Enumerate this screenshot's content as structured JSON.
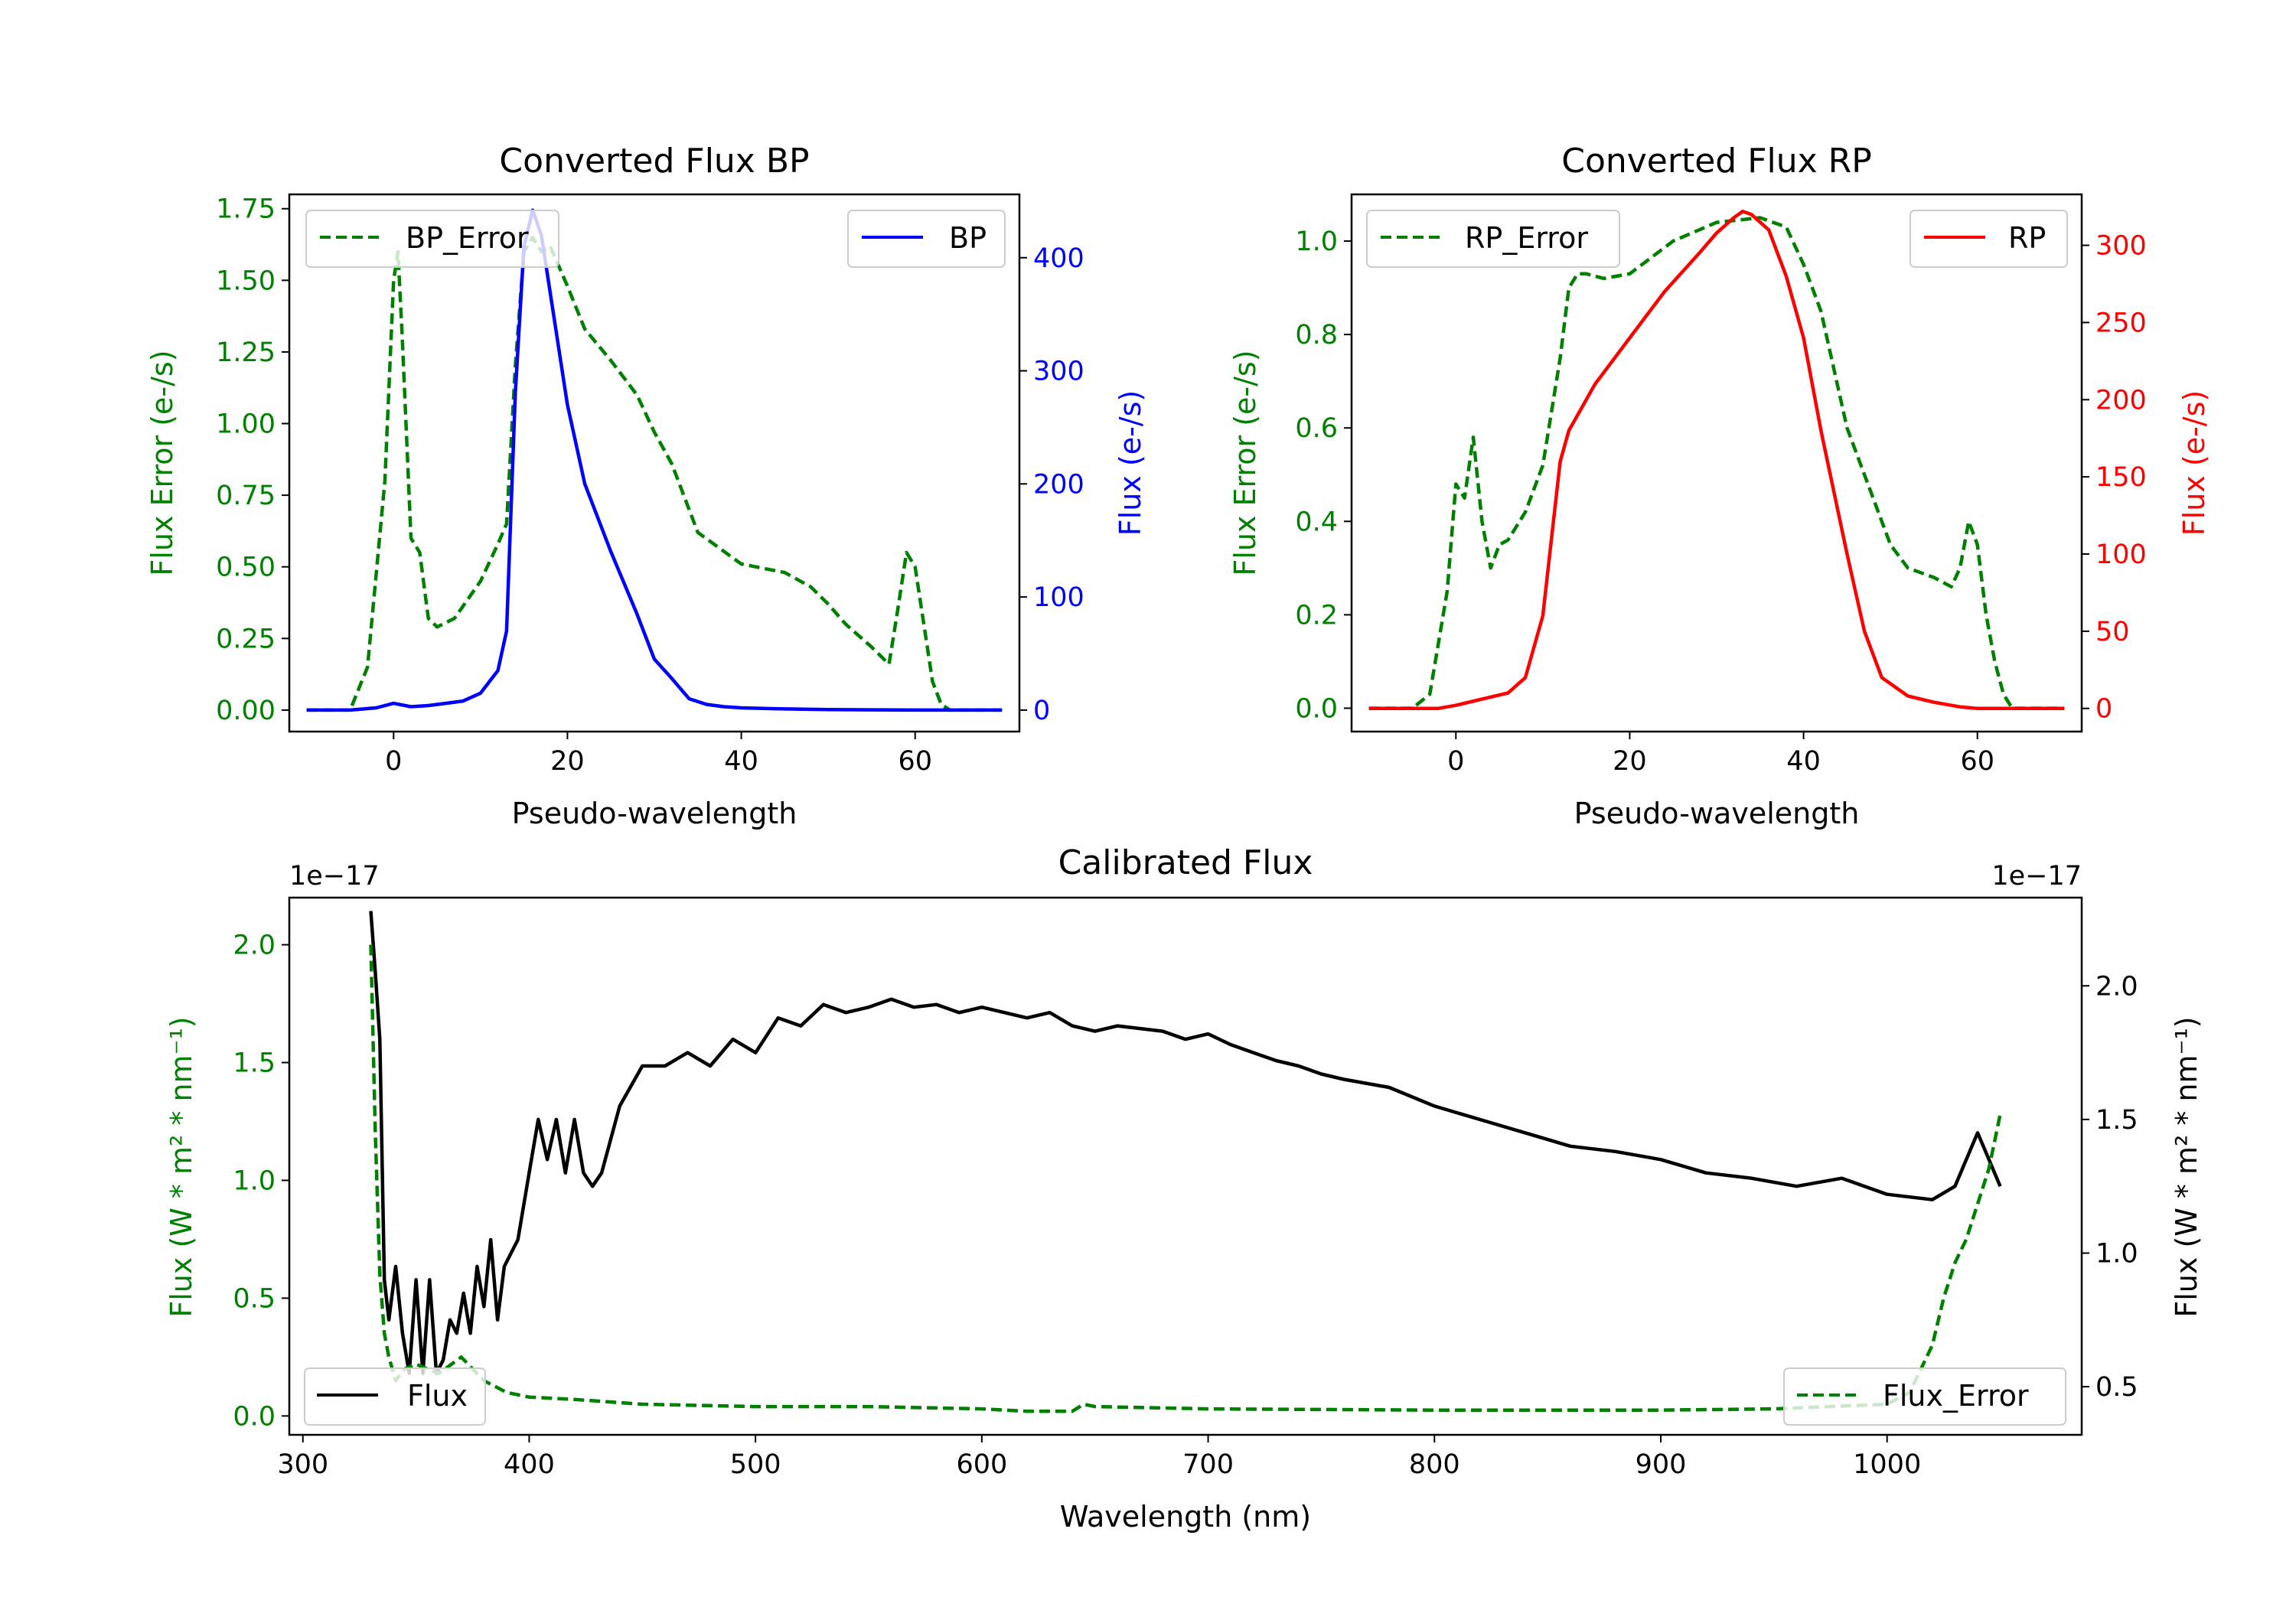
{
  "colors": {
    "green": "#008000",
    "blue": "#0000ff",
    "red": "#ff0000",
    "black": "#000000"
  },
  "chart_data": [
    {
      "type": "line",
      "title": "Converted Flux BP",
      "xlabel": "Pseudo-wavelength",
      "ylabel_left": "Flux Error (e-/s)",
      "ylabel_right": "Flux (e-/s)",
      "xlim": [
        -12,
        72
      ],
      "ylim_left": [
        -0.075,
        1.8
      ],
      "ylim_right": [
        -19,
        456
      ],
      "xticks": [
        0,
        20,
        40,
        60
      ],
      "yticks_left": [
        "0.00",
        "0.25",
        "0.50",
        "0.75",
        "1.00",
        "1.25",
        "1.50",
        "1.75"
      ],
      "yticks_right": [
        "0",
        "100",
        "200",
        "300",
        "400"
      ],
      "legend_left": "BP_Error",
      "legend_right": "BP",
      "series": [
        {
          "name": "BP_Error",
          "axis": "left",
          "style": "dashed",
          "color": "green",
          "x": [
            -10,
            -5,
            -3,
            -1,
            0,
            0.5,
            1,
            2,
            3,
            4,
            5,
            7,
            10,
            12,
            13,
            14,
            15,
            16,
            17,
            18,
            20,
            22,
            25,
            28,
            30,
            32,
            35,
            40,
            45,
            48,
            50,
            52,
            55,
            57,
            58,
            59,
            60,
            61,
            62,
            63,
            64,
            66,
            70
          ],
          "y": [
            0,
            0,
            0.15,
            0.8,
            1.5,
            1.6,
            1.3,
            0.6,
            0.55,
            0.32,
            0.29,
            0.32,
            0.45,
            0.58,
            0.65,
            1.2,
            1.6,
            1.65,
            1.6,
            1.62,
            1.48,
            1.33,
            1.22,
            1.1,
            0.97,
            0.86,
            0.62,
            0.51,
            0.48,
            0.43,
            0.37,
            0.3,
            0.22,
            0.16,
            0.35,
            0.55,
            0.5,
            0.3,
            0.1,
            0.02,
            0,
            0,
            0
          ]
        },
        {
          "name": "BP",
          "axis": "right",
          "style": "solid",
          "color": "blue",
          "x": [
            -10,
            -5,
            -2,
            0,
            2,
            4,
            6,
            8,
            10,
            12,
            13,
            14,
            15,
            16,
            17,
            18,
            20,
            22,
            25,
            28,
            30,
            32,
            34,
            36,
            38,
            40,
            45,
            50,
            55,
            60,
            65,
            70
          ],
          "y": [
            0,
            0,
            2,
            6,
            3,
            4,
            6,
            8,
            15,
            35,
            70,
            280,
            410,
            442,
            420,
            370,
            270,
            200,
            140,
            85,
            45,
            28,
            10,
            5,
            3,
            2,
            1,
            0.5,
            0.2,
            0,
            0,
            0
          ]
        }
      ]
    },
    {
      "type": "line",
      "title": "Converted Flux RP",
      "xlabel": "Pseudo-wavelength",
      "ylabel_left": "Flux Error (e-/s)",
      "ylabel_right": "Flux (e-/s)",
      "xlim": [
        -12,
        72
      ],
      "ylim_left": [
        -0.05,
        1.1
      ],
      "ylim_right": [
        -15,
        333
      ],
      "xticks": [
        0,
        20,
        40,
        60
      ],
      "yticks_left": [
        "0.0",
        "0.2",
        "0.4",
        "0.6",
        "0.8",
        "1.0"
      ],
      "yticks_right": [
        "0",
        "50",
        "100",
        "150",
        "200",
        "250",
        "300"
      ],
      "legend_left": "RP_Error",
      "legend_right": "RP",
      "series": [
        {
          "name": "RP_Error",
          "axis": "left",
          "style": "dashed",
          "color": "green",
          "x": [
            -10,
            -5,
            -3,
            -1,
            0,
            1,
            2,
            3,
            4,
            5,
            6,
            8,
            10,
            12,
            13,
            14,
            15,
            17,
            20,
            25,
            30,
            35,
            38,
            40,
            42,
            45,
            50,
            52,
            55,
            57,
            58,
            59,
            60,
            61,
            62,
            63,
            64,
            66,
            70
          ],
          "y": [
            0,
            0,
            0.03,
            0.25,
            0.48,
            0.45,
            0.58,
            0.4,
            0.3,
            0.35,
            0.36,
            0.42,
            0.52,
            0.75,
            0.9,
            0.93,
            0.93,
            0.92,
            0.93,
            1.0,
            1.04,
            1.05,
            1.03,
            0.95,
            0.85,
            0.6,
            0.35,
            0.3,
            0.28,
            0.26,
            0.3,
            0.4,
            0.35,
            0.2,
            0.1,
            0.03,
            0,
            0,
            0
          ]
        },
        {
          "name": "RP",
          "axis": "right",
          "style": "solid",
          "color": "red",
          "x": [
            -10,
            -5,
            -2,
            0,
            3,
            6,
            8,
            10,
            11,
            12,
            13,
            14,
            16,
            20,
            24,
            28,
            30,
            32,
            33,
            34,
            36,
            38,
            40,
            42,
            45,
            47,
            49,
            52,
            55,
            58,
            60,
            65,
            70
          ],
          "y": [
            0,
            0,
            0,
            2,
            6,
            10,
            20,
            60,
            110,
            160,
            180,
            190,
            210,
            240,
            270,
            295,
            308,
            318,
            322,
            320,
            310,
            280,
            240,
            180,
            100,
            50,
            20,
            8,
            4,
            1,
            0,
            0,
            0
          ]
        }
      ]
    },
    {
      "type": "line",
      "title": "Calibrated Flux",
      "xlabel": "Wavelength (nm)",
      "ylabel_left": "Flux (W * m² * nm⁻¹)",
      "ylabel_right": "Flux (W * m² * nm⁻¹)",
      "offset_left": "1e−17",
      "offset_right": "1e−17",
      "xlim": [
        294,
        1086
      ],
      "ylim_left": [
        -0.08,
        2.2
      ],
      "ylim_right": [
        0.32,
        2.33
      ],
      "xticks": [
        300,
        400,
        500,
        600,
        700,
        800,
        900,
        1000
      ],
      "yticks_left": [
        "0.0",
        "0.5",
        "1.0",
        "1.5",
        "2.0"
      ],
      "yticks_right": [
        "0.5",
        "1.0",
        "1.5",
        "2.0"
      ],
      "legend_left": "Flux",
      "legend_right": "Flux_Error",
      "series": [
        {
          "name": "Flux",
          "axis": "right",
          "style": "solid",
          "color": "black",
          "x": [
            330,
            332,
            334,
            336,
            338,
            341,
            344,
            347,
            350,
            353,
            356,
            359,
            362,
            365,
            368,
            371,
            374,
            377,
            380,
            383,
            386,
            389,
            392,
            395,
            400,
            404,
            408,
            412,
            416,
            420,
            424,
            428,
            432,
            440,
            450,
            460,
            470,
            480,
            490,
            500,
            510,
            520,
            530,
            540,
            550,
            560,
            570,
            580,
            590,
            600,
            610,
            620,
            630,
            640,
            650,
            660,
            670,
            680,
            690,
            700,
            710,
            720,
            730,
            740,
            750,
            760,
            780,
            800,
            820,
            840,
            860,
            880,
            900,
            920,
            940,
            960,
            980,
            1000,
            1020,
            1030,
            1040,
            1045,
            1050
          ],
          "y": [
            2.28,
            2.05,
            1.8,
            0.9,
            0.75,
            0.95,
            0.7,
            0.55,
            0.9,
            0.55,
            0.9,
            0.55,
            0.6,
            0.75,
            0.7,
            0.85,
            0.7,
            0.95,
            0.8,
            1.05,
            0.75,
            0.95,
            1.0,
            1.05,
            1.3,
            1.5,
            1.35,
            1.5,
            1.3,
            1.5,
            1.3,
            1.25,
            1.3,
            1.55,
            1.7,
            1.7,
            1.75,
            1.7,
            1.8,
            1.75,
            1.88,
            1.85,
            1.93,
            1.9,
            1.92,
            1.95,
            1.92,
            1.93,
            1.9,
            1.92,
            1.9,
            1.88,
            1.9,
            1.85,
            1.83,
            1.85,
            1.84,
            1.83,
            1.8,
            1.82,
            1.78,
            1.75,
            1.72,
            1.7,
            1.67,
            1.65,
            1.62,
            1.55,
            1.5,
            1.45,
            1.4,
            1.38,
            1.35,
            1.3,
            1.28,
            1.25,
            1.28,
            1.22,
            1.2,
            1.25,
            1.45,
            1.35,
            1.25
          ]
        },
        {
          "name": "Flux_Error",
          "axis": "left",
          "style": "dashed",
          "color": "green",
          "x": [
            330,
            332,
            334,
            336,
            338,
            341,
            345,
            350,
            360,
            370,
            380,
            390,
            400,
            420,
            450,
            500,
            550,
            600,
            620,
            640,
            645,
            650,
            700,
            800,
            900,
            950,
            1000,
            1010,
            1020,
            1025,
            1030,
            1035,
            1040,
            1045,
            1050
          ],
          "y": [
            2.0,
            1.2,
            0.6,
            0.35,
            0.25,
            0.15,
            0.2,
            0.22,
            0.18,
            0.25,
            0.15,
            0.1,
            0.08,
            0.07,
            0.05,
            0.04,
            0.04,
            0.03,
            0.02,
            0.02,
            0.05,
            0.04,
            0.03,
            0.025,
            0.025,
            0.03,
            0.05,
            0.1,
            0.3,
            0.5,
            0.65,
            0.75,
            0.9,
            1.05,
            1.28
          ]
        }
      ]
    }
  ]
}
